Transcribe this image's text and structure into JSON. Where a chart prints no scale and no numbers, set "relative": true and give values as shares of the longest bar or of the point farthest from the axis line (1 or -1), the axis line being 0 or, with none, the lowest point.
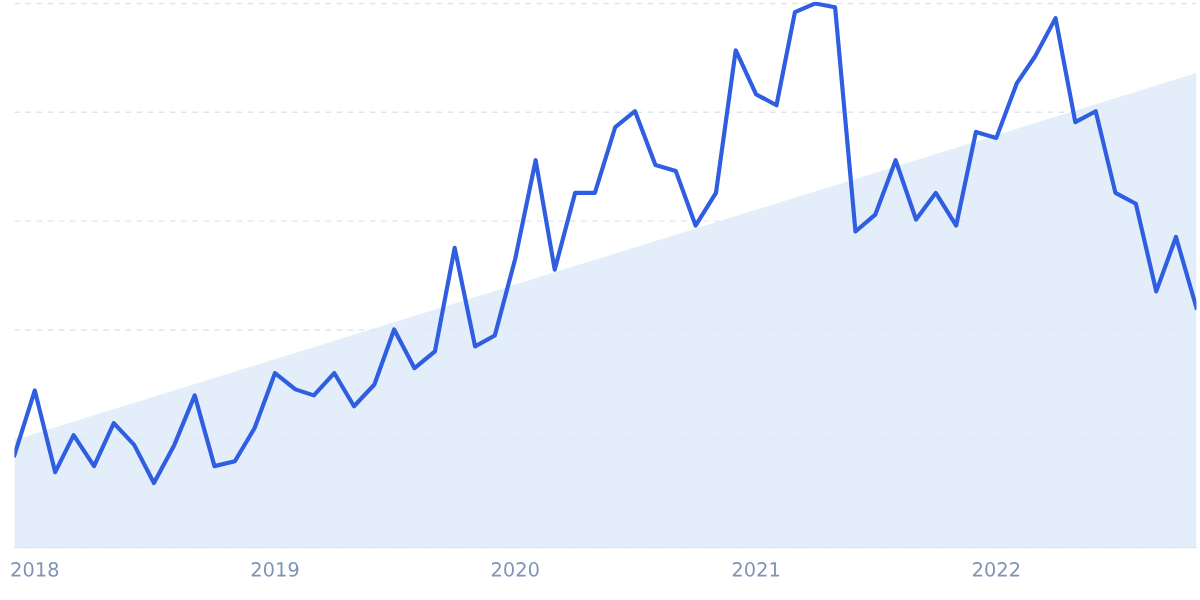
{
  "chart_data": {
    "type": "line",
    "relative": true,
    "grid": "y",
    "marker": "none",
    "line_style": "solid",
    "xlim": [
      "2017-12",
      "2022-11"
    ],
    "xticks": [
      "2018",
      "2019",
      "2020",
      "2021",
      "2022"
    ],
    "x": [
      "2017-12",
      "2018-01",
      "2018-02",
      "2018-03",
      "2018-04",
      "2018-05",
      "2018-06",
      "2018-07",
      "2018-08",
      "2018-09",
      "2018-10",
      "2018-11",
      "2018-12",
      "2019-01",
      "2019-02",
      "2019-03",
      "2019-04",
      "2019-05",
      "2019-06",
      "2019-07",
      "2019-08",
      "2019-09",
      "2019-10",
      "2019-11",
      "2019-12",
      "2020-01",
      "2020-02",
      "2020-03",
      "2020-04",
      "2020-05",
      "2020-06",
      "2020-07",
      "2020-08",
      "2020-09",
      "2020-10",
      "2020-11",
      "2020-12",
      "2021-01",
      "2021-02",
      "2021-03",
      "2021-04",
      "2021-05",
      "2021-06",
      "2021-07",
      "2021-08",
      "2021-09",
      "2021-10",
      "2021-11",
      "2021-12",
      "2022-01",
      "2022-02",
      "2022-03",
      "2022-04",
      "2022-05",
      "2022-06",
      "2022-07",
      "2022-08",
      "2022-09",
      "2022-10",
      "2022-11"
    ],
    "series": [
      {
        "type": "area",
        "color": "#dceaf9",
        "x": [
          "2017-12",
          "2022-11"
        ],
        "values": [
          0.198,
          0.872
        ]
      },
      {
        "color": "#2f5fe0",
        "values": [
          0.17,
          0.289,
          0.139,
          0.207,
          0.15,
          0.229,
          0.189,
          0.119,
          0.189,
          0.28,
          0.15,
          0.159,
          0.22,
          0.321,
          0.291,
          0.28,
          0.321,
          0.26,
          0.3,
          0.401,
          0.33,
          0.361,
          0.551,
          0.37,
          0.39,
          0.531,
          0.712,
          0.511,
          0.652,
          0.652,
          0.773,
          0.802,
          0.703,
          0.692,
          0.592,
          0.652,
          0.914,
          0.833,
          0.813,
          0.984,
          1.0,
          0.993,
          0.581,
          0.612,
          0.712,
          0.603,
          0.652,
          0.592,
          0.764,
          0.753,
          0.853,
          0.903,
          0.973,
          0.782,
          0.802,
          0.652,
          0.632,
          0.471,
          0.571,
          0.441
        ]
      }
    ]
  }
}
